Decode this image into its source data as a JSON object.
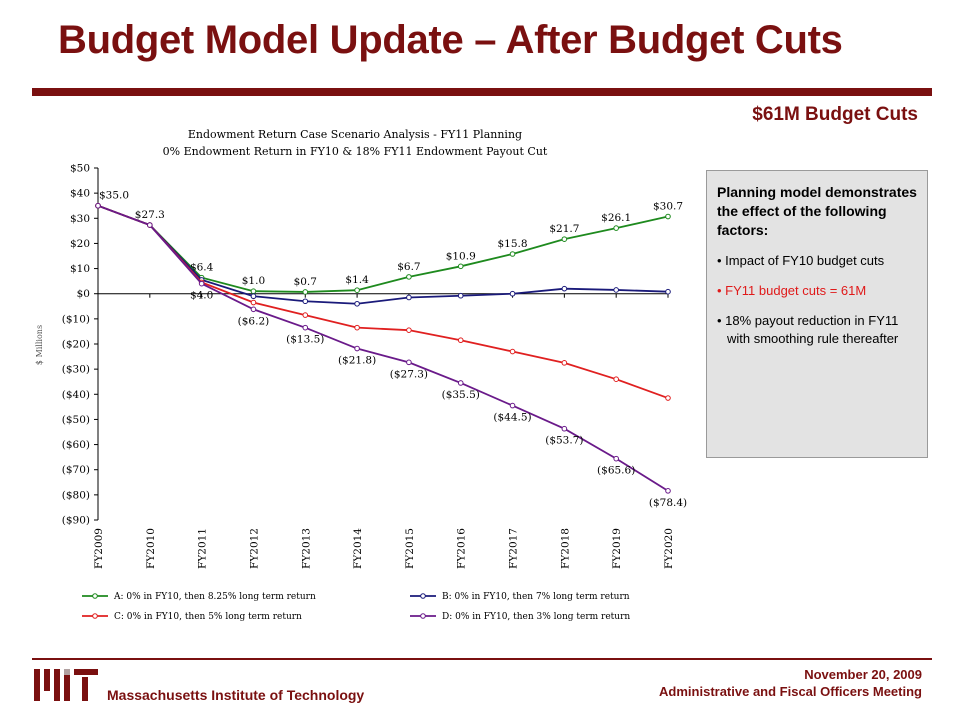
{
  "slide": {
    "title": "Budget Model Update – After Budget Cuts",
    "subtitle": "$61M Budget Cuts"
  },
  "info_box": {
    "heading": "Planning model demonstrates the effect of the following factors:",
    "items": [
      "• Impact of FY10 budget cuts",
      "• FY11 budget cuts = 61M",
      "• 18% payout reduction in FY11 with smoothing rule thereafter"
    ]
  },
  "footer": {
    "institute": "Massachusetts Institute of Technology",
    "date": "November 20, 2009",
    "meeting": "Administrative and Fiscal Officers Meeting"
  },
  "colors": {
    "brand": "#7a1010",
    "series_a": "#1e8a1e",
    "series_b": "#1a1a7a",
    "series_c": "#e02020",
    "series_d": "#6a1a8a",
    "highlight_text": "#e01a1a",
    "box_bg": "#e3e3e3"
  },
  "chart_data": {
    "type": "line",
    "title": "Endowment Return Case Scenario Analysis - FY11 Planning",
    "subtitle": "0% Endowment Return in FY10 & 18% FY11 Endowment Payout Cut",
    "xlabel": "",
    "ylabel": "$ Millions",
    "ylim": [
      -90,
      50
    ],
    "yticks": [
      50,
      40,
      30,
      20,
      10,
      0,
      -10,
      -20,
      -30,
      -40,
      -50,
      -60,
      -70,
      -80,
      -90
    ],
    "ytick_labels": [
      "$50",
      "$40",
      "$30",
      "$20",
      "$10",
      "$0",
      "($10)",
      "($20)",
      "($30)",
      "($40)",
      "($50)",
      "($60)",
      "($70)",
      "($80)",
      "($90)"
    ],
    "categories": [
      "FY2009",
      "FY2010",
      "FY2011",
      "FY2012",
      "FY2013",
      "FY2014",
      "FY2015",
      "FY2016",
      "FY2017",
      "FY2018",
      "FY2019",
      "FY2020"
    ],
    "grid": false,
    "legend_position": "bottom",
    "series": [
      {
        "name": "A: 0% in FY10, then 8.25% long term return",
        "values": [
          35.0,
          27.3,
          6.4,
          1.0,
          0.7,
          1.4,
          6.7,
          10.9,
          15.8,
          21.7,
          26.1,
          30.7
        ],
        "labels": [
          "$35.0",
          "$27.3",
          "$6.4",
          "$1.0",
          "$0.7",
          "$1.4",
          "$6.7",
          "$10.9",
          "$15.8",
          "$21.7",
          "$26.1",
          "$30.7"
        ]
      },
      {
        "name": "B: 0% in FY10, then 7% long term return",
        "values": [
          35.0,
          27.3,
          5.5,
          -1.0,
          -3.0,
          -4.0,
          -1.5,
          -0.8,
          0.0,
          2.0,
          1.5,
          0.8
        ],
        "labels": []
      },
      {
        "name": "C: 0% in FY10, then 5% long term return",
        "values": [
          35.0,
          27.3,
          4.5,
          -3.5,
          -8.5,
          -13.5,
          -14.5,
          -18.5,
          -23.0,
          -27.5,
          -34.0,
          -41.5
        ],
        "labels": []
      },
      {
        "name": "D: 0% in FY10, then 3% long term return",
        "values": [
          35.0,
          27.3,
          4.0,
          -6.2,
          -13.5,
          -21.8,
          -27.3,
          -35.5,
          -44.5,
          -53.7,
          -65.6,
          -78.4
        ],
        "labels": [
          "",
          "",
          "$4.0",
          "($6.2)",
          "($13.5)",
          "($21.8)",
          "($27.3)",
          "($35.5)",
          "($44.5)",
          "($53.7)",
          "($65.6)",
          "($78.4)"
        ]
      }
    ]
  }
}
